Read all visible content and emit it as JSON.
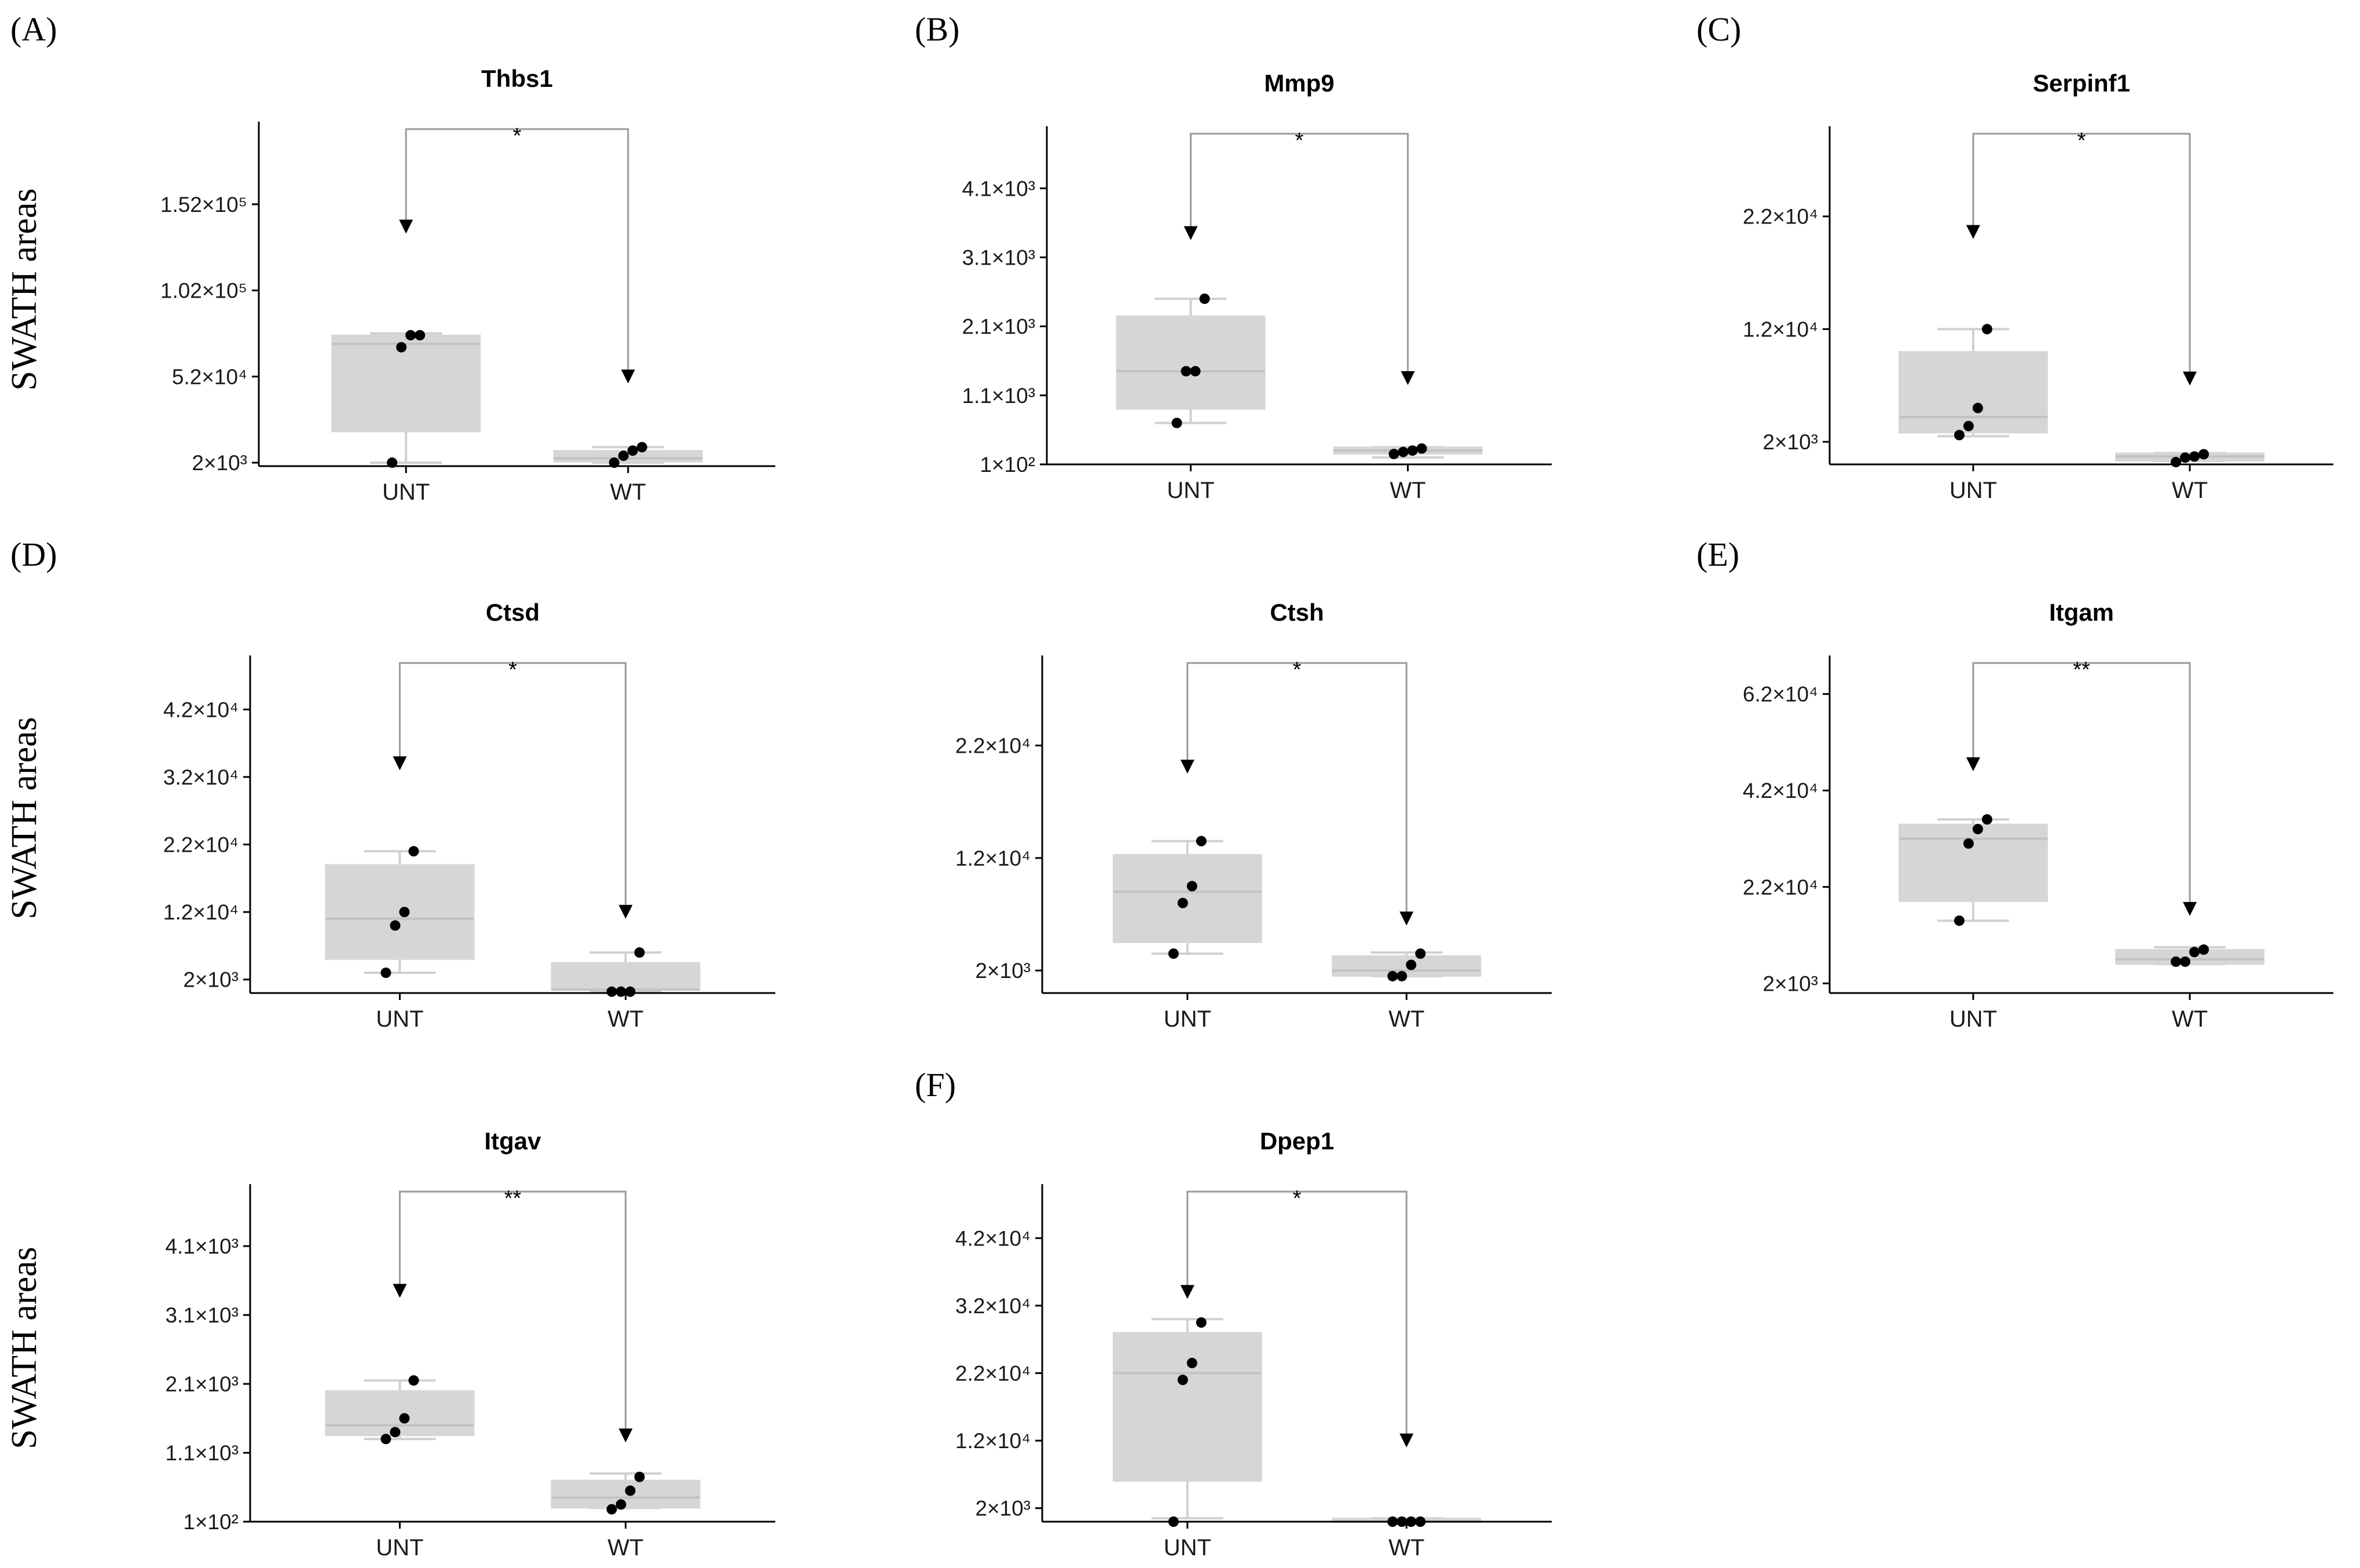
{
  "figure": {
    "y_axis_label": "SWATH areas",
    "categories": [
      "UNT",
      "WT"
    ]
  },
  "colors": {
    "box_fill": "#d6d6d6",
    "box_median": "#c2c2c2",
    "whisker": "#d0d0d0",
    "point": "#000000",
    "axis": "#000000",
    "bracket": "#9a9a9a"
  },
  "chart_data": [
    {
      "panel": "(A)",
      "type": "box",
      "title": "Thbs1",
      "significance": "*",
      "ylim": [
        0,
        200000
      ],
      "ytick_values": [
        2000,
        52000,
        102000,
        152000
      ],
      "ytick_labels": [
        "2×10³",
        "5.2×10⁴",
        "1.02×10⁵",
        "1.52×10⁵"
      ],
      "arrow_y": [
        135000,
        48000
      ],
      "groups": [
        {
          "name": "UNT",
          "min": 2000,
          "q1": 20000,
          "median": 71000,
          "q3": 76000,
          "max": 77000,
          "points": [
            2000,
            69000,
            76000,
            76000
          ]
        },
        {
          "name": "WT",
          "min": 2000,
          "q1": 2500,
          "median": 4500,
          "q3": 9000,
          "max": 11000,
          "points": [
            2000,
            6000,
            9000,
            11000
          ]
        }
      ]
    },
    {
      "panel": "(B)",
      "type": "box",
      "title": "Mmp9",
      "significance": "*",
      "ylim": [
        100,
        5000
      ],
      "ytick_values": [
        100,
        1100,
        2100,
        3100,
        4100
      ],
      "ytick_labels": [
        "1×10²",
        "1.1×10³",
        "2.1×10³",
        "3.1×10³",
        "4.1×10³"
      ],
      "arrow_y": [
        3350,
        1250
      ],
      "groups": [
        {
          "name": "UNT",
          "min": 700,
          "q1": 900,
          "median": 1450,
          "q3": 2250,
          "max": 2500,
          "points": [
            700,
            1450,
            1450,
            2500
          ]
        },
        {
          "name": "WT",
          "min": 200,
          "q1": 250,
          "median": 300,
          "q3": 350,
          "max": 350,
          "points": [
            250,
            280,
            300,
            330
          ]
        }
      ]
    },
    {
      "panel": "(C)",
      "type": "box",
      "title": "Serpinf1",
      "significance": "*",
      "ylim": [
        0,
        30000
      ],
      "ytick_values": [
        2000,
        12000,
        22000
      ],
      "ytick_labels": [
        "2×10³",
        "1.2×10⁴",
        "2.2×10⁴"
      ],
      "arrow_y": [
        20000,
        7000
      ],
      "groups": [
        {
          "name": "UNT",
          "min": 2500,
          "q1": 2800,
          "median": 4200,
          "q3": 10000,
          "max": 12000,
          "points": [
            2600,
            3400,
            5000,
            12000
          ]
        },
        {
          "name": "WT",
          "min": 300,
          "q1": 300,
          "median": 700,
          "q3": 1000,
          "max": 1000,
          "points": [
            200,
            600,
            700,
            900
          ]
        }
      ]
    },
    {
      "panel": "(D)",
      "type": "box",
      "title": "Ctsd",
      "significance": "*",
      "ylim": [
        0,
        50000
      ],
      "ytick_values": [
        2000,
        12000,
        22000,
        32000,
        42000
      ],
      "ytick_labels": [
        "2×10³",
        "1.2×10⁴",
        "2.2×10⁴",
        "3.2×10⁴",
        "4.2×10⁴"
      ],
      "arrow_y": [
        33000,
        11000
      ],
      "groups": [
        {
          "name": "UNT",
          "min": 3000,
          "q1": 5000,
          "median": 11000,
          "q3": 19000,
          "max": 21000,
          "points": [
            3000,
            10000,
            12000,
            21000
          ]
        },
        {
          "name": "WT",
          "min": 200,
          "q1": 500,
          "median": 500,
          "q3": 4500,
          "max": 6000,
          "points": [
            200,
            200,
            200,
            6000
          ]
        }
      ]
    },
    {
      "panel": "",
      "type": "box",
      "title": "Ctsh",
      "significance": "*",
      "ylim": [
        0,
        30000
      ],
      "ytick_values": [
        2000,
        12000,
        22000
      ],
      "ytick_labels": [
        "2×10³",
        "1.2×10⁴",
        "2.2×10⁴"
      ],
      "arrow_y": [
        19500,
        6000
      ],
      "groups": [
        {
          "name": "UNT",
          "min": 3500,
          "q1": 4500,
          "median": 9000,
          "q3": 12300,
          "max": 13500,
          "points": [
            3500,
            8000,
            9500,
            13500
          ]
        },
        {
          "name": "WT",
          "min": 1500,
          "q1": 1500,
          "median": 2000,
          "q3": 3300,
          "max": 3600,
          "points": [
            1500,
            1500,
            2500,
            3500
          ]
        }
      ]
    },
    {
      "panel": "(E)",
      "type": "box",
      "title": "Itgam",
      "significance": "**",
      "ylim": [
        0,
        70000
      ],
      "ytick_values": [
        2000,
        22000,
        42000,
        62000
      ],
      "ytick_labels": [
        "2×10³",
        "2.2×10⁴",
        "4.2×10⁴",
        "6.2×10⁴"
      ],
      "arrow_y": [
        46000,
        16000
      ],
      "groups": [
        {
          "name": "UNT",
          "min": 15000,
          "q1": 19000,
          "median": 32000,
          "q3": 35000,
          "max": 36000,
          "points": [
            15000,
            31000,
            34000,
            36000
          ]
        },
        {
          "name": "WT",
          "min": 6000,
          "q1": 6000,
          "median": 7000,
          "q3": 9000,
          "max": 9500,
          "points": [
            6500,
            6500,
            8500,
            9000
          ]
        }
      ]
    },
    {
      "panel": "",
      "type": "box",
      "title": "Itgav",
      "significance": "**",
      "ylim": [
        100,
        5000
      ],
      "ytick_values": [
        100,
        1100,
        2100,
        3100,
        4100
      ],
      "ytick_labels": [
        "1×10²",
        "1.1×10³",
        "2.1×10³",
        "3.1×10³",
        "4.1×10³"
      ],
      "arrow_y": [
        3350,
        1250
      ],
      "groups": [
        {
          "name": "UNT",
          "min": 1300,
          "q1": 1350,
          "median": 1500,
          "q3": 2000,
          "max": 2150,
          "points": [
            1300,
            1400,
            1600,
            2150
          ]
        },
        {
          "name": "WT",
          "min": 300,
          "q1": 300,
          "median": 450,
          "q3": 700,
          "max": 800,
          "points": [
            280,
            350,
            550,
            750
          ]
        }
      ]
    },
    {
      "panel": "(F)",
      "type": "box",
      "title": "Dpep1",
      "significance": "*",
      "ylim": [
        0,
        50000
      ],
      "ytick_values": [
        2000,
        12000,
        22000,
        32000,
        42000
      ],
      "ytick_labels": [
        "2×10³",
        "1.2×10⁴",
        "2.2×10⁴",
        "3.2×10⁴",
        "4.2×10⁴"
      ],
      "arrow_y": [
        33000,
        11000
      ],
      "groups": [
        {
          "name": "UNT",
          "min": 500,
          "q1": 6000,
          "median": 22000,
          "q3": 28000,
          "max": 30000,
          "points": [
            0,
            21000,
            23500,
            29500
          ]
        },
        {
          "name": "WT",
          "min": 0,
          "q1": 0,
          "median": 0,
          "q3": 500,
          "max": 500,
          "points": [
            0,
            0,
            0,
            0
          ]
        }
      ]
    }
  ]
}
